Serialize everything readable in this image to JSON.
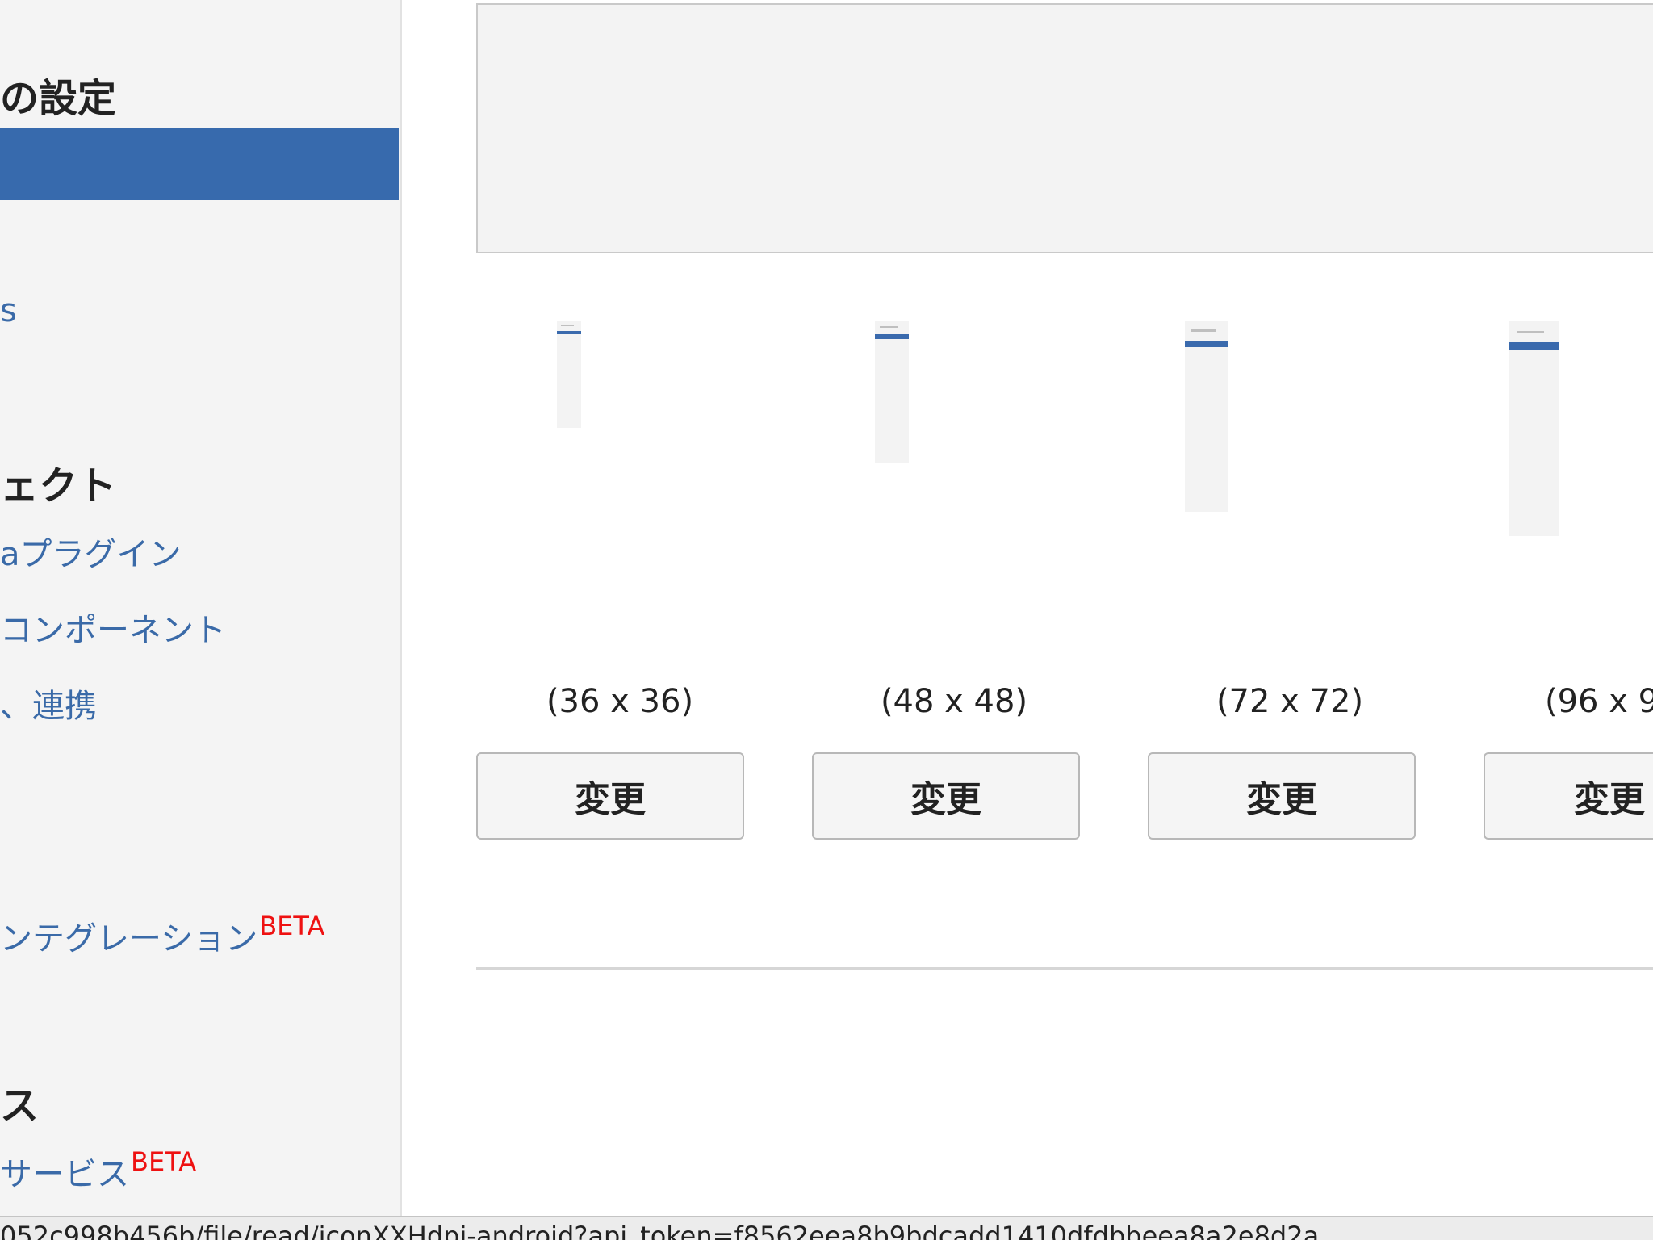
{
  "sidebar": {
    "heading_settings": "の設定",
    "heading_project": "ェクト",
    "heading_service": "ス",
    "links": {
      "s": "s",
      "plugin": "aプラグイン",
      "component": "コンポーネント",
      "integration": "、連携",
      "integration_beta": "ンテグレーション",
      "service_beta": "サービス"
    },
    "beta_label": "BETA"
  },
  "main": {
    "icons": [
      {
        "size_label": "(36 x 36)",
        "button_label": "変更"
      },
      {
        "size_label": "(48 x 48)",
        "button_label": "変更"
      },
      {
        "size_label": "(72 x 72)",
        "button_label": "変更"
      },
      {
        "size_label": "(96 x 9",
        "button_label": "変更"
      }
    ]
  },
  "statusbar": {
    "url": "052c998b456b/file/read/iconXXHdpi-android?api_token=f8562eea8b9bdcadd1410dfdbbeea8a2e8d2a"
  },
  "colors": {
    "accent": "#376aad",
    "beta": "#ee1111",
    "link": "#3a6aa8"
  }
}
